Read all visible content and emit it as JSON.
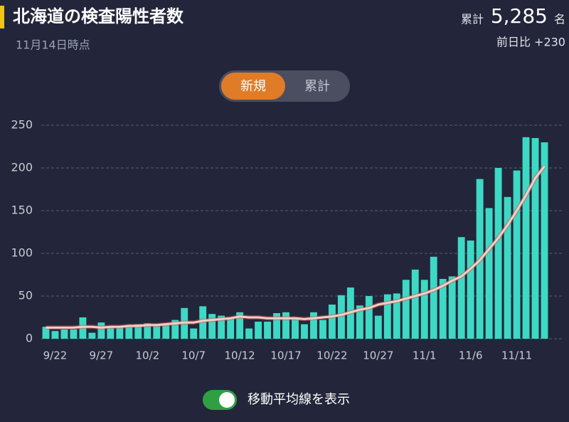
{
  "header": {
    "title": "北海道の検査陽性者数",
    "asof": "11月14日時点",
    "total_label": "累計",
    "total": "5,285",
    "unit": "名",
    "diff": "前日比 +230"
  },
  "toggle": {
    "options": [
      "新規",
      "累計"
    ],
    "switch_label": "移動平均線を表示"
  },
  "chart_data": {
    "type": "bar",
    "categories": [
      null,
      "9/22",
      null,
      null,
      null,
      null,
      "9/27",
      null,
      null,
      null,
      null,
      "10/2",
      null,
      null,
      null,
      null,
      "10/7",
      null,
      null,
      null,
      null,
      "10/12",
      null,
      null,
      null,
      null,
      "10/17",
      null,
      null,
      null,
      null,
      "10/22",
      null,
      null,
      null,
      null,
      "10/27",
      null,
      null,
      null,
      null,
      "11/1",
      null,
      null,
      null,
      null,
      "11/6",
      null,
      null,
      null,
      null,
      "11/11",
      null,
      null,
      null
    ],
    "series": [
      {
        "type": "bar",
        "color": "#3dd9c5",
        "values": [
          14,
          9,
          11,
          11,
          25,
          7,
          19,
          15,
          15,
          14,
          17,
          18,
          15,
          16,
          22,
          36,
          12,
          38,
          29,
          27,
          25,
          31,
          12,
          20,
          20,
          30,
          31,
          25,
          17,
          31,
          22,
          40,
          51,
          60,
          39,
          50,
          27,
          52,
          53,
          69,
          81,
          69,
          96,
          70,
          73,
          119,
          115,
          187,
          153,
          200,
          166,
          197,
          236,
          235,
          230
        ]
      },
      {
        "type": "line",
        "color": "#f2cfc6",
        "values": [
          13,
          13,
          13,
          13,
          14,
          14,
          13,
          14,
          14,
          15,
          15,
          16,
          16,
          17,
          18,
          19,
          19,
          21,
          22,
          23,
          24,
          26,
          25,
          25,
          24,
          24,
          24,
          24,
          23,
          24,
          25,
          26,
          28,
          31,
          34,
          36,
          40,
          42,
          44,
          47,
          50,
          53,
          57,
          62,
          68,
          73,
          82,
          92,
          105,
          118,
          133,
          150,
          168,
          188,
          202
        ]
      }
    ],
    "ylim": [
      0,
      250
    ],
    "yticks": [
      0,
      50,
      100,
      150,
      200,
      250
    ],
    "grid": true
  }
}
